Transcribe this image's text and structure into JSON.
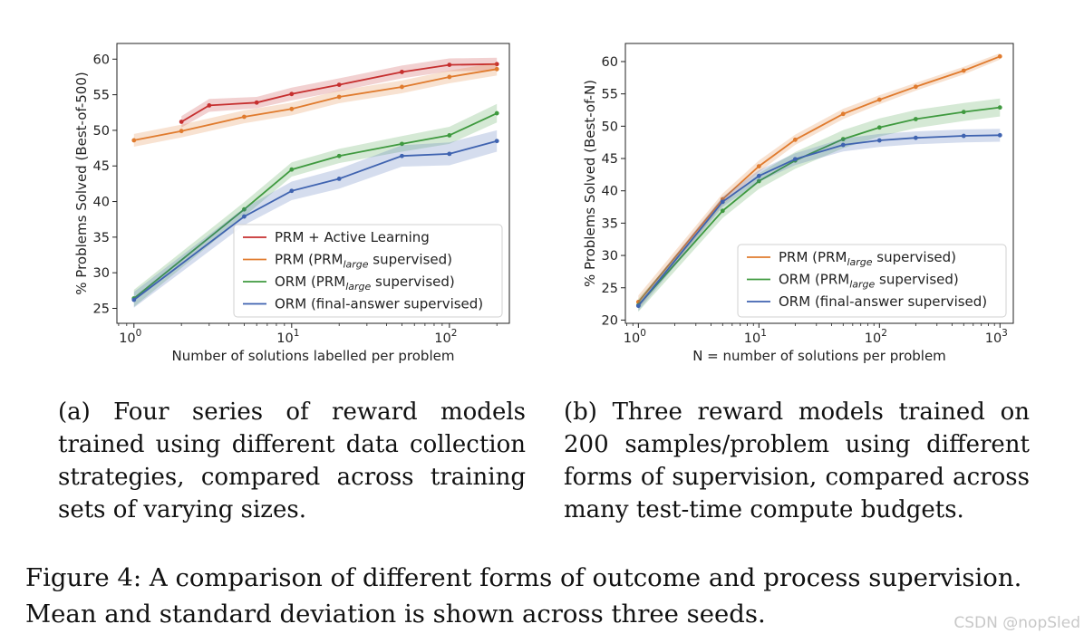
{
  "chart_data": [
    {
      "type": "line",
      "ylabel": "% Problems Solved (Best-of-500)",
      "xlabel": "Number of solutions labelled per problem",
      "xscale": "log",
      "xlim": [
        0.78,
        240
      ],
      "ylim": [
        22.9,
        62.2
      ],
      "yticks": [
        25,
        30,
        35,
        40,
        45,
        50,
        55,
        60
      ],
      "xticks": [
        {
          "value": 1,
          "base": "10",
          "exp": "0"
        },
        {
          "value": 10,
          "base": "10",
          "exp": "1"
        },
        {
          "value": 100,
          "base": "10",
          "exp": "2"
        }
      ],
      "legend_position": "lower-right",
      "series": [
        {
          "name": "PRM + Active Learning",
          "label": "PRM + Active Learning",
          "color": "#c62f2f",
          "x": [
            2,
            3,
            6,
            10,
            20,
            50,
            100,
            200
          ],
          "y": [
            51.2,
            53.5,
            53.9,
            55.1,
            56.4,
            58.2,
            59.2,
            59.3
          ],
          "err": [
            0.8,
            0.9,
            0.8,
            0.9,
            0.9,
            0.9,
            0.9,
            0.9
          ]
        },
        {
          "name": "PRM (PRM_large supervised)",
          "label": "PRM (PRM",
          "sub": "large",
          "suffix": " supervised)",
          "color": "#e07b2e",
          "x": [
            1,
            2,
            5,
            10,
            20,
            50,
            100,
            200
          ],
          "y": [
            48.6,
            49.9,
            51.9,
            53.0,
            54.7,
            56.1,
            57.5,
            58.6
          ],
          "err": [
            0.9,
            0.9,
            0.9,
            0.9,
            0.9,
            0.9,
            0.9,
            0.9
          ]
        },
        {
          "name": "ORM (PRM_large supervised)",
          "label": "ORM (PRM",
          "sub": "large",
          "suffix": " supervised)",
          "color": "#3f9a3f",
          "x": [
            1,
            5,
            10,
            20,
            50,
            100,
            200
          ],
          "y": [
            26.4,
            38.9,
            44.5,
            46.4,
            48.1,
            49.3,
            52.4
          ],
          "err": [
            1.2,
            1.0,
            1.0,
            1.0,
            1.1,
            1.2,
            1.3
          ]
        },
        {
          "name": "ORM (final-answer supervised)",
          "label": "ORM (final-answer supervised)",
          "color": "#3f63b0",
          "x": [
            1,
            5,
            10,
            20,
            50,
            100,
            200
          ],
          "y": [
            26.2,
            37.9,
            41.5,
            43.2,
            46.4,
            46.7,
            48.5
          ],
          "err": [
            1.1,
            1.2,
            1.3,
            1.4,
            1.5,
            1.6,
            1.5
          ]
        }
      ]
    },
    {
      "type": "line",
      "ylabel": "% Problems Solved (Best-of-N)",
      "xlabel": "N = number of solutions per problem",
      "xscale": "log",
      "xlim": [
        0.78,
        1290
      ],
      "ylim": [
        19.5,
        62.8
      ],
      "yticks": [
        20,
        25,
        30,
        35,
        40,
        45,
        50,
        55,
        60
      ],
      "xticks": [
        {
          "value": 1,
          "base": "10",
          "exp": "0"
        },
        {
          "value": 10,
          "base": "10",
          "exp": "1"
        },
        {
          "value": 100,
          "base": "10",
          "exp": "2"
        },
        {
          "value": 1000,
          "base": "10",
          "exp": "3"
        }
      ],
      "legend_position": "lower-right",
      "series": [
        {
          "name": "PRM (PRM_large supervised)",
          "label": "PRM (PRM",
          "sub": "large",
          "suffix": " supervised)",
          "color": "#e07b2e",
          "x": [
            1,
            5,
            10,
            20,
            50,
            100,
            200,
            500,
            1000
          ],
          "y": [
            22.8,
            38.7,
            43.8,
            47.9,
            51.9,
            54.1,
            56.1,
            58.6,
            60.8
          ],
          "err": [
            1.0,
            0.9,
            0.9,
            0.8,
            0.8,
            0.7,
            0.6,
            0.6,
            0.5
          ]
        },
        {
          "name": "ORM (PRM_large supervised)",
          "label": "ORM (PRM",
          "sub": "large",
          "suffix": " supervised)",
          "color": "#3f9a3f",
          "x": [
            1,
            5,
            10,
            20,
            50,
            100,
            200,
            500,
            1000
          ],
          "y": [
            22.3,
            36.9,
            41.5,
            44.7,
            48.0,
            49.8,
            51.1,
            52.2,
            52.9
          ],
          "err": [
            1.0,
            1.1,
            1.2,
            1.3,
            1.4,
            1.4,
            1.4,
            1.4,
            1.4
          ]
        },
        {
          "name": "ORM (final-answer supervised)",
          "label": "ORM (final-answer supervised)",
          "color": "#3f63b0",
          "x": [
            1,
            5,
            10,
            20,
            50,
            100,
            200,
            500,
            1000
          ],
          "y": [
            22.2,
            38.3,
            42.3,
            44.9,
            47.1,
            47.8,
            48.2,
            48.5,
            48.6
          ],
          "err": [
            0.8,
            0.8,
            0.9,
            0.9,
            1.0,
            1.0,
            1.0,
            1.0,
            1.0
          ]
        }
      ]
    }
  ],
  "captions": {
    "a": [
      "(a)  Four  series  of  reward  models",
      "trained using different data collection",
      "strategies, compared across training",
      "sets of varying sizes."
    ],
    "b": [
      "(b) Three reward models trained on",
      "200 samples/problem using different",
      "forms of supervision, compared across",
      "many test-time compute budgets."
    ],
    "figure": [
      "Figure 4: A comparison of different forms of outcome and process supervision.",
      "Mean and standard deviation is shown across three seeds."
    ]
  },
  "watermark": "CSDN @nopSled"
}
